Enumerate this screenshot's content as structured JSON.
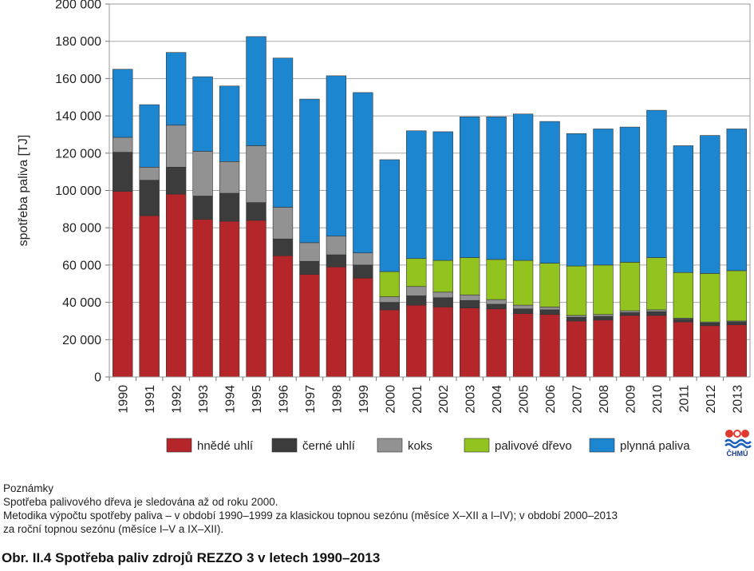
{
  "chart_data": {
    "type": "bar",
    "stacked": true,
    "ylabel": "spotřeba paliva [TJ]",
    "ylim": [
      0,
      200000
    ],
    "yticks": [
      0,
      20000,
      40000,
      60000,
      80000,
      100000,
      120000,
      140000,
      160000,
      180000,
      200000
    ],
    "ytick_labels": [
      "0",
      "20 000",
      "40 000",
      "60 000",
      "80 000",
      "100 000",
      "120 000",
      "140 000",
      "160 000",
      "180 000",
      "200 000"
    ],
    "grid": "horizontal",
    "legend_placement": "bottom",
    "categories": [
      "1990",
      "1991",
      "1992",
      "1993",
      "1994",
      "1995",
      "1996",
      "1997",
      "1998",
      "1999",
      "2000",
      "2001",
      "2002",
      "2003",
      "2004",
      "2005",
      "2006",
      "2007",
      "2008",
      "2009",
      "2010",
      "2011",
      "2012",
      "2013"
    ],
    "series": [
      {
        "name": "hnědé uhlí",
        "color": "#b5262b",
        "values": [
          99500,
          86500,
          98000,
          84500,
          83500,
          84000,
          65000,
          55000,
          59000,
          53000,
          36000,
          38500,
          37500,
          37000,
          36500,
          34000,
          33500,
          30000,
          30500,
          33000,
          33000,
          29500,
          27500,
          28000
        ]
      },
      {
        "name": "černé uhlí",
        "color": "#3c3c3c",
        "values": [
          21000,
          19000,
          14500,
          12500,
          15000,
          9500,
          9000,
          7000,
          6500,
          7000,
          4000,
          5000,
          5000,
          4000,
          2500,
          2500,
          2500,
          2000,
          2000,
          1500,
          2000,
          1500,
          1500,
          1500
        ]
      },
      {
        "name": "koks",
        "color": "#929292",
        "values": [
          8000,
          7000,
          22500,
          24000,
          17000,
          30500,
          17000,
          10000,
          10000,
          6500,
          3000,
          5000,
          3000,
          3000,
          2500,
          2000,
          1500,
          1000,
          1000,
          1000,
          1000,
          500,
          500,
          500
        ]
      },
      {
        "name": "palivové dřevo",
        "color": "#92c31e",
        "values": [
          0,
          0,
          0,
          0,
          0,
          0,
          0,
          0,
          0,
          0,
          13500,
          15000,
          17000,
          20000,
          21500,
          24000,
          23500,
          26500,
          26500,
          26000,
          28000,
          24500,
          26000,
          27000
        ]
      },
      {
        "name": "plynná paliva",
        "color": "#1c87d0",
        "values": [
          36500,
          33500,
          39000,
          40000,
          40500,
          58500,
          80000,
          77000,
          86000,
          86000,
          60000,
          68500,
          69000,
          75500,
          76500,
          78500,
          76000,
          71000,
          73000,
          72500,
          79000,
          68000,
          74000,
          76000
        ]
      }
    ]
  },
  "logo": {
    "label": "ČHMÚ"
  },
  "notes": {
    "title": "Poznámky",
    "line1": "Spotřeba palivového dřeva je sledována až od roku 2000.",
    "line2": "Metodika výpočtu spotřeby paliva – v období 1990–1999 za klasickou topnou sezónu (měsíce X–XII a I–IV); v období 2000–2013",
    "line3": "za roční topnou sezónu (měsíce I–V a IX–XII)."
  },
  "caption": "Obr. II.4  Spotřeba paliv zdrojů REZZO 3 v letech 1990–2013"
}
